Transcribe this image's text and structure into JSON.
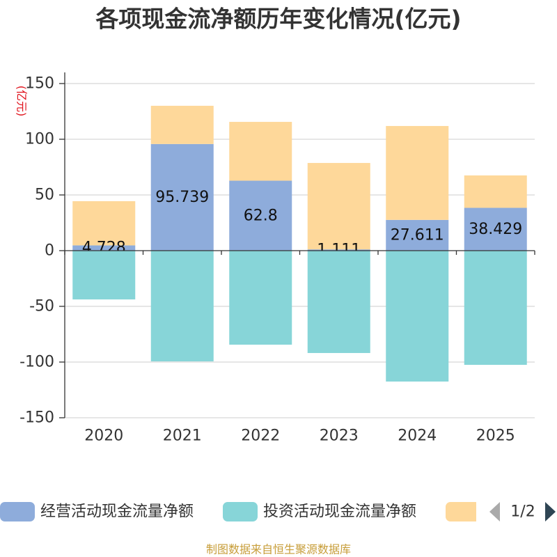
{
  "chart_data": {
    "type": "bar",
    "stacked": true,
    "title": "各项现金流净额历年变化情况(亿元)",
    "ylabel": "(亿元)",
    "xlabel": "",
    "categories": [
      "2020",
      "2021",
      "2022",
      "2023",
      "2024",
      "2025"
    ],
    "ylim": [
      -150,
      150
    ],
    "yticks": [
      150,
      100,
      50,
      0,
      -50,
      -100,
      -150
    ],
    "grid": true,
    "legend_position": "bottom",
    "series": [
      {
        "name": "经营活动现金流量净额",
        "color": "#8eacdb",
        "data_labels": true,
        "values": [
          4.728,
          95.739,
          62.8,
          1.111,
          27.611,
          38.429
        ]
      },
      {
        "name": "投资活动现金流量净额",
        "color": "#87d5d8",
        "values": [
          -43.8,
          -99.4,
          -84.4,
          -91.9,
          -117.5,
          -102.5
        ]
      },
      {
        "name": "",
        "color": "#fed89a",
        "values": [
          39.7,
          34.3,
          52.8,
          77.6,
          84.3,
          29.1
        ]
      }
    ]
  },
  "legend": {
    "page": "1/2",
    "prev_icon": "triangle-left-icon",
    "next_icon": "triangle-right-icon",
    "prev_color": "#aaaaaa",
    "next_color": "#2f4554"
  },
  "footer": "制图数据来自恒生聚源数据库"
}
